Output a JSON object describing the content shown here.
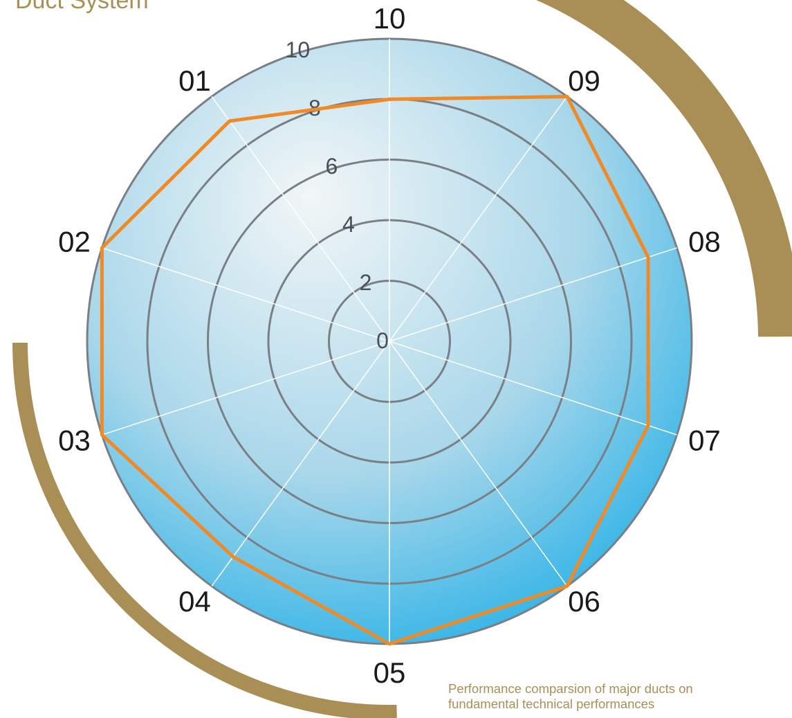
{
  "header": {
    "title": "Duct System"
  },
  "caption": {
    "line1": "Performance comparsion of major ducts on",
    "line2": "fundamental technical performances"
  },
  "colors": {
    "series": "#f08a26",
    "accent_arc": "#a98f55",
    "grid_ring": "#7a7f86",
    "spoke": "#ffffff",
    "disc_light": "#f2f6f7",
    "disc_dark": "#1eaee6"
  },
  "chart_data": {
    "type": "radar",
    "categories": [
      "10",
      "09",
      "08",
      "07",
      "06",
      "05",
      "04",
      "03",
      "02",
      "01"
    ],
    "radial_ticks": [
      "0",
      "2",
      "4",
      "6",
      "8",
      "10"
    ],
    "rlim": [
      0,
      10
    ],
    "series": [
      {
        "values": [
          8,
          10,
          9,
          9,
          10,
          10,
          8.8,
          10,
          10,
          9
        ]
      }
    ]
  }
}
